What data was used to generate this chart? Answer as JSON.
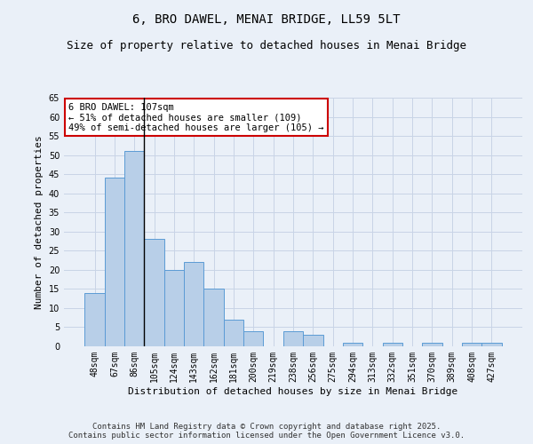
{
  "title": "6, BRO DAWEL, MENAI BRIDGE, LL59 5LT",
  "subtitle": "Size of property relative to detached houses in Menai Bridge",
  "xlabel": "Distribution of detached houses by size in Menai Bridge",
  "ylabel": "Number of detached properties",
  "categories": [
    "48sqm",
    "67sqm",
    "86sqm",
    "105sqm",
    "124sqm",
    "143sqm",
    "162sqm",
    "181sqm",
    "200sqm",
    "219sqm",
    "238sqm",
    "256sqm",
    "275sqm",
    "294sqm",
    "313sqm",
    "332sqm",
    "351sqm",
    "370sqm",
    "389sqm",
    "408sqm",
    "427sqm"
  ],
  "values": [
    14,
    44,
    51,
    28,
    20,
    22,
    15,
    7,
    4,
    0,
    4,
    3,
    0,
    1,
    0,
    1,
    0,
    1,
    0,
    1,
    1
  ],
  "bar_color": "#b8cfe8",
  "bar_edge_color": "#5b9bd5",
  "subject_bin_index": 3,
  "annotation_text": "6 BRO DAWEL: 107sqm\n← 51% of detached houses are smaller (109)\n49% of semi-detached houses are larger (105) →",
  "annotation_box_color": "white",
  "annotation_box_edge_color": "#cc0000",
  "vline_color": "black",
  "ylim": [
    0,
    65
  ],
  "yticks": [
    0,
    5,
    10,
    15,
    20,
    25,
    30,
    35,
    40,
    45,
    50,
    55,
    60,
    65
  ],
  "footer_line1": "Contains HM Land Registry data © Crown copyright and database right 2025.",
  "footer_line2": "Contains public sector information licensed under the Open Government Licence v3.0.",
  "bg_color": "#eaf0f8",
  "grid_color": "#c8d4e6",
  "title_fontsize": 10,
  "subtitle_fontsize": 9,
  "axis_label_fontsize": 8,
  "tick_fontsize": 7,
  "annotation_fontsize": 7.5,
  "footer_fontsize": 6.5
}
